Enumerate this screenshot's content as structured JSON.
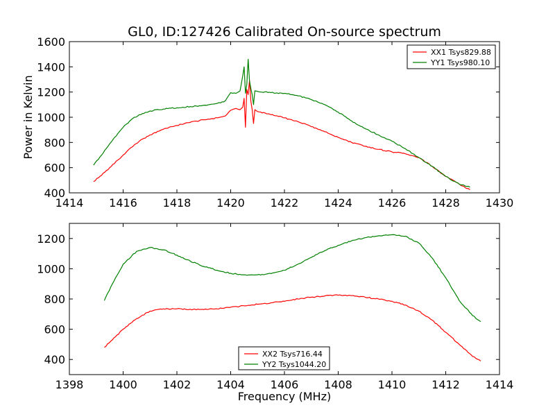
{
  "chart_data": [
    {
      "type": "line",
      "title": "GL0, ID:127426 Calibrated On-source spectrum",
      "xlabel": "",
      "ylabel": "Power in Kelvin",
      "xlim": [
        1414,
        1430
      ],
      "ylim": [
        400,
        1600
      ],
      "xticks": [
        1414,
        1416,
        1418,
        1420,
        1422,
        1424,
        1426,
        1428,
        1430
      ],
      "yticks": [
        400,
        600,
        800,
        1000,
        1200,
        1400,
        1600
      ],
      "grid": false,
      "legend_position": "top-right",
      "series": [
        {
          "name": "XX1 Tsys829.88",
          "color": "#ff0000",
          "x": [
            1414.9,
            1415.2,
            1415.5,
            1415.8,
            1416.0,
            1416.3,
            1416.6,
            1417.0,
            1417.5,
            1418.0,
            1418.5,
            1419.0,
            1419.5,
            1419.8,
            1420.0,
            1420.2,
            1420.35,
            1420.45,
            1420.5,
            1420.55,
            1420.6,
            1420.65,
            1420.7,
            1420.75,
            1420.8,
            1420.85,
            1420.9,
            1421.0,
            1421.5,
            1422.0,
            1422.5,
            1423.0,
            1423.5,
            1424.0,
            1424.5,
            1425.0,
            1425.5,
            1426.0,
            1426.5,
            1427.0,
            1427.5,
            1428.0,
            1428.5,
            1428.9
          ],
          "y": [
            490,
            540,
            600,
            660,
            700,
            760,
            810,
            860,
            905,
            935,
            960,
            980,
            995,
            1010,
            1055,
            1070,
            1060,
            1080,
            1150,
            920,
            1220,
            1180,
            1290,
            1130,
            1060,
            950,
            1060,
            1045,
            1020,
            995,
            965,
            925,
            885,
            840,
            800,
            770,
            745,
            725,
            710,
            680,
            610,
            530,
            470,
            425
          ]
        },
        {
          "name": "YY1 Tsys980.10",
          "color": "#008000",
          "x": [
            1414.9,
            1415.2,
            1415.5,
            1415.8,
            1416.0,
            1416.3,
            1416.6,
            1417.0,
            1417.5,
            1418.0,
            1418.5,
            1419.0,
            1419.5,
            1419.8,
            1420.0,
            1420.2,
            1420.35,
            1420.45,
            1420.5,
            1420.55,
            1420.6,
            1420.65,
            1420.7,
            1420.75,
            1420.8,
            1420.85,
            1420.9,
            1421.0,
            1421.5,
            1422.0,
            1422.5,
            1423.0,
            1423.5,
            1424.0,
            1424.5,
            1425.0,
            1425.5,
            1426.0,
            1426.5,
            1427.0,
            1427.5,
            1428.0,
            1428.5,
            1428.9
          ],
          "y": [
            620,
            700,
            790,
            870,
            920,
            980,
            1020,
            1050,
            1065,
            1075,
            1085,
            1095,
            1110,
            1130,
            1195,
            1190,
            1210,
            1330,
            1400,
            1190,
            1260,
            1460,
            1290,
            1230,
            1180,
            1100,
            1210,
            1205,
            1195,
            1190,
            1170,
            1140,
            1100,
            1040,
            970,
            910,
            860,
            810,
            750,
            680,
            610,
            530,
            470,
            445
          ]
        }
      ]
    },
    {
      "type": "line",
      "title": "",
      "xlabel": "Frequency (MHz)",
      "ylabel": "",
      "xlim": [
        1398,
        1414
      ],
      "ylim": [
        300,
        1300
      ],
      "xticks": [
        1398,
        1400,
        1402,
        1404,
        1406,
        1408,
        1410,
        1412,
        1414
      ],
      "yticks": [
        400,
        600,
        800,
        1000,
        1200
      ],
      "grid": false,
      "legend_position": "bottom-center",
      "series": [
        {
          "name": "XX2 Tsys716.44",
          "color": "#ff0000",
          "x": [
            1399.3,
            1399.6,
            1400.0,
            1400.5,
            1401.0,
            1401.5,
            1402.0,
            1402.5,
            1403.0,
            1403.5,
            1404.0,
            1404.5,
            1405.0,
            1405.5,
            1406.0,
            1406.5,
            1407.0,
            1407.5,
            1408.0,
            1408.5,
            1409.0,
            1409.5,
            1410.0,
            1410.5,
            1411.0,
            1411.5,
            1412.0,
            1412.5,
            1413.0,
            1413.3
          ],
          "y": [
            480,
            530,
            600,
            670,
            720,
            735,
            735,
            732,
            730,
            735,
            745,
            755,
            765,
            775,
            785,
            800,
            812,
            820,
            825,
            822,
            812,
            800,
            785,
            760,
            720,
            660,
            580,
            500,
            420,
            390
          ]
        },
        {
          "name": "YY2 Tsys1044.20",
          "color": "#008000",
          "x": [
            1399.3,
            1399.6,
            1400.0,
            1400.5,
            1401.0,
            1401.5,
            1402.0,
            1402.5,
            1403.0,
            1403.5,
            1404.0,
            1404.5,
            1405.0,
            1405.5,
            1406.0,
            1406.5,
            1407.0,
            1407.5,
            1408.0,
            1408.5,
            1409.0,
            1409.5,
            1410.0,
            1410.5,
            1411.0,
            1411.5,
            1412.0,
            1412.5,
            1413.0,
            1413.3
          ],
          "y": [
            790,
            900,
            1030,
            1115,
            1140,
            1125,
            1090,
            1050,
            1015,
            990,
            970,
            960,
            960,
            968,
            990,
            1030,
            1075,
            1120,
            1155,
            1185,
            1205,
            1218,
            1225,
            1215,
            1170,
            1070,
            940,
            790,
            690,
            650
          ]
        }
      ]
    }
  ]
}
